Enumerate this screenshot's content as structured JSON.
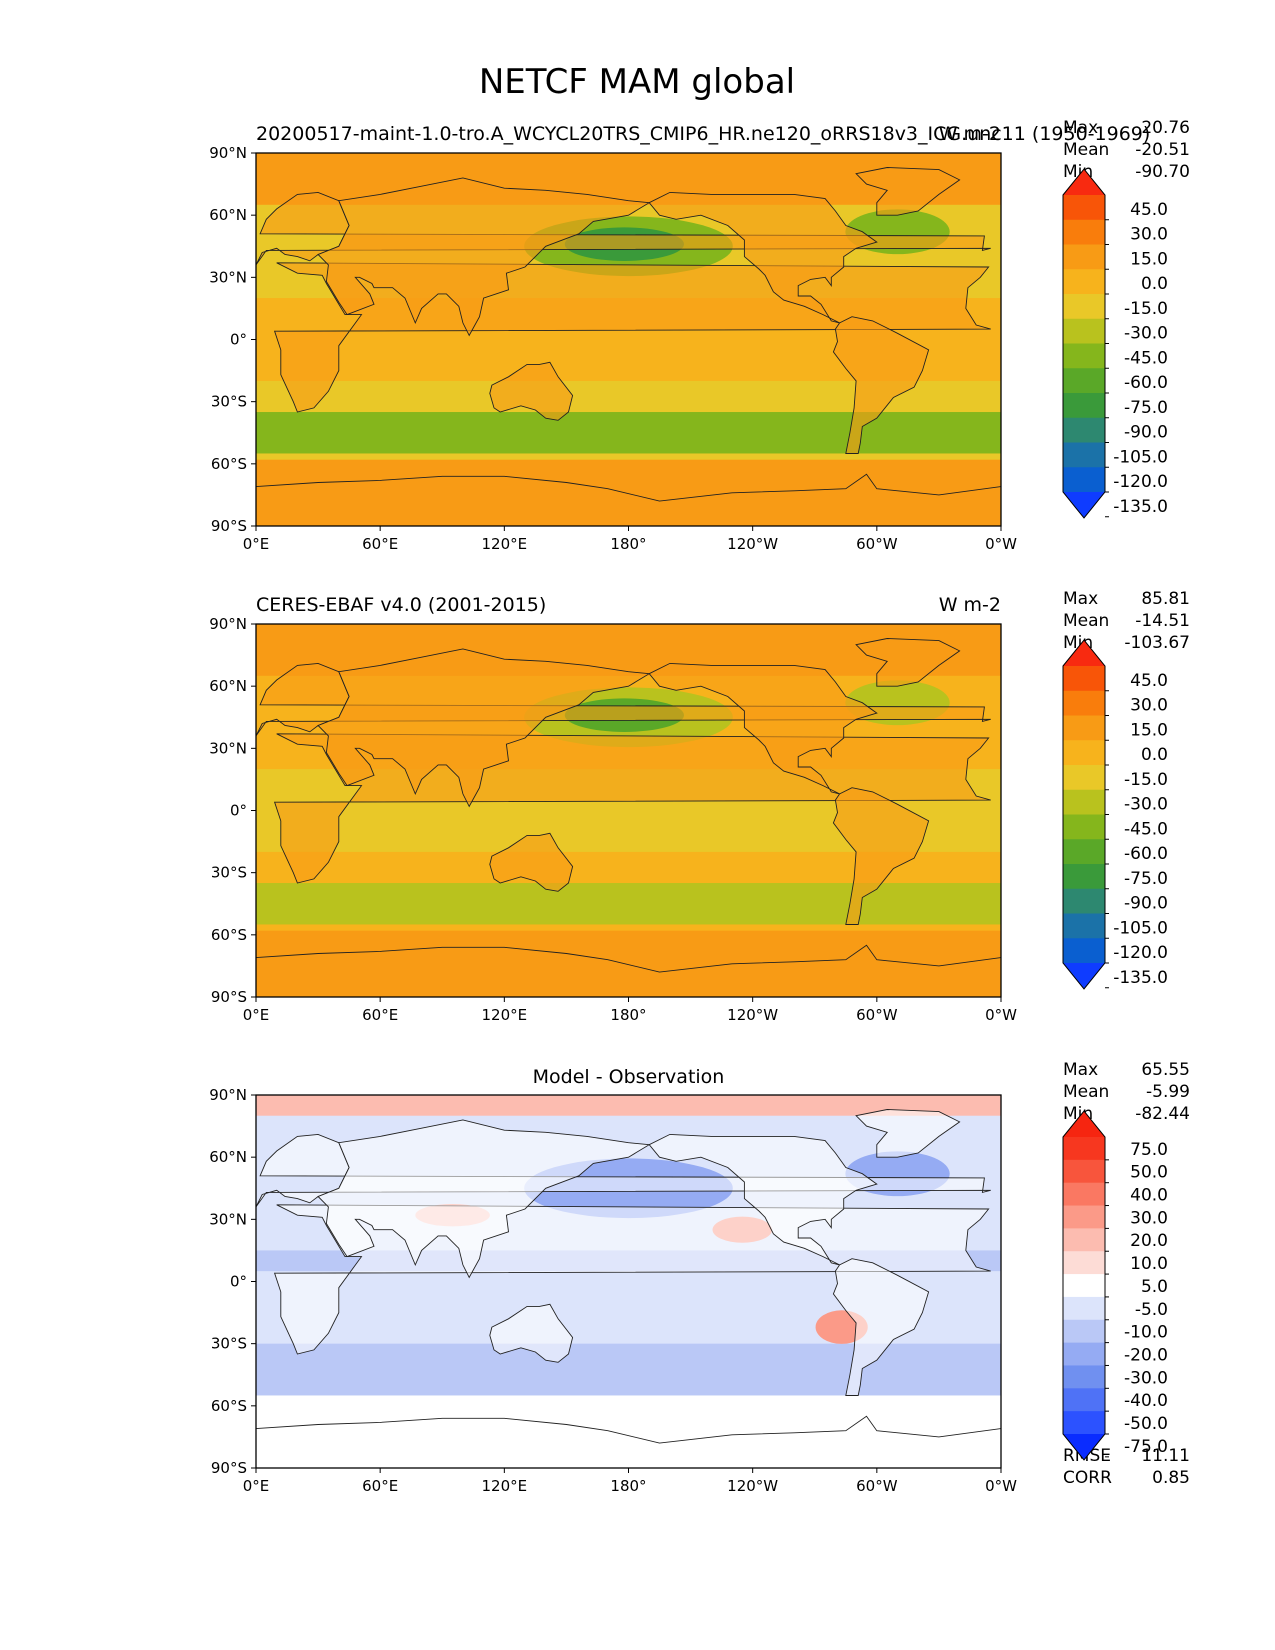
{
  "figure": {
    "title": "NETCF MAM global"
  },
  "chart_data": [
    {
      "type": "heatmap",
      "title_left": "20200517-maint-1.0-tro.A_WCYCL20TRS_CMIP6_HR.ne120_oRRS18v3_ICG.unc11 (1950-1969)",
      "title_right": "W m-2",
      "stats": [
        {
          "label": "Max",
          "value": "20.76"
        },
        {
          "label": "Mean",
          "value": "-20.51"
        },
        {
          "label": "Min",
          "value": "-90.70"
        }
      ],
      "x_ticks": [
        "0°E",
        "60°E",
        "120°E",
        "180°",
        "120°W",
        "60°W",
        "0°W"
      ],
      "y_ticks": [
        "90°N",
        "60°N",
        "30°N",
        "0°",
        "30°S",
        "60°S",
        "90°S"
      ],
      "xlim": [
        0,
        360
      ],
      "ylim": [
        -90,
        90
      ],
      "colorbar": {
        "levels": [
          -135.0,
          -120.0,
          -105.0,
          -90.0,
          -75.0,
          -60.0,
          -45.0,
          -30.0,
          -15.0,
          0.0,
          15.0,
          30.0,
          45.0
        ],
        "labels": [
          "-135.0",
          "-120.0",
          "-105.0",
          "-90.0",
          "-75.0",
          "-60.0",
          "-45.0",
          "-30.0",
          "-15.0",
          "0.0",
          "15.0",
          "30.0",
          "45.0"
        ],
        "colors": [
          "#0f3cff",
          "#0a5fd0",
          "#1b72a8",
          "#2d8870",
          "#3a9a3a",
          "#5aa828",
          "#85b61c",
          "#b9c21e",
          "#e9c828",
          "#f7b31c",
          "#f89b15",
          "#f97d0c",
          "#f85508",
          "#f82a10"
        ],
        "extend": "both"
      },
      "map_colors": {
        "ocean": "#e9c828",
        "mid": "#f7b31c",
        "land": "#f89b15",
        "green": "#85b61c",
        "deep": "#3a9a3a"
      }
    },
    {
      "type": "heatmap",
      "title_left": "CERES-EBAF v4.0 (2001-2015)",
      "title_right": "W m-2",
      "stats": [
        {
          "label": "Max",
          "value": "85.81"
        },
        {
          "label": "Mean",
          "value": "-14.51"
        },
        {
          "label": "Min",
          "value": "-103.67"
        }
      ],
      "x_ticks": [
        "0°E",
        "60°E",
        "120°E",
        "180°",
        "120°W",
        "60°W",
        "0°W"
      ],
      "y_ticks": [
        "90°N",
        "60°N",
        "30°N",
        "0°",
        "30°S",
        "60°S",
        "90°S"
      ],
      "xlim": [
        0,
        360
      ],
      "ylim": [
        -90,
        90
      ],
      "colorbar": {
        "levels": [
          -135.0,
          -120.0,
          -105.0,
          -90.0,
          -75.0,
          -60.0,
          -45.0,
          -30.0,
          -15.0,
          0.0,
          15.0,
          30.0,
          45.0
        ],
        "labels": [
          "-135.0",
          "-120.0",
          "-105.0",
          "-90.0",
          "-75.0",
          "-60.0",
          "-45.0",
          "-30.0",
          "-15.0",
          "0.0",
          "15.0",
          "30.0",
          "45.0"
        ],
        "colors": [
          "#0f3cff",
          "#0a5fd0",
          "#1b72a8",
          "#2d8870",
          "#3a9a3a",
          "#5aa828",
          "#85b61c",
          "#b9c21e",
          "#e9c828",
          "#f7b31c",
          "#f89b15",
          "#f97d0c",
          "#f85508",
          "#f82a10"
        ],
        "extend": "both"
      },
      "map_colors": {
        "ocean": "#f7b31c",
        "mid": "#e9c828",
        "land": "#f89b15",
        "green": "#b9c21e",
        "deep": "#5aa828"
      }
    },
    {
      "type": "heatmap",
      "title_center": "Model - Observation",
      "stats": [
        {
          "label": "Max",
          "value": "65.55"
        },
        {
          "label": "Mean",
          "value": "-5.99"
        },
        {
          "label": "Min",
          "value": "-82.44"
        }
      ],
      "extra_stats": [
        {
          "label": "RMSE",
          "value": "11.11"
        },
        {
          "label": "CORR",
          "value": "0.85"
        }
      ],
      "x_ticks": [
        "0°E",
        "60°E",
        "120°E",
        "180°",
        "120°W",
        "60°W",
        "0°W"
      ],
      "y_ticks": [
        "90°N",
        "60°N",
        "30°N",
        "0°",
        "30°S",
        "60°S",
        "90°S"
      ],
      "xlim": [
        0,
        360
      ],
      "ylim": [
        -90,
        90
      ],
      "colorbar": {
        "levels": [
          -75.0,
          -50.0,
          -40.0,
          -30.0,
          -20.0,
          -10.0,
          -5.0,
          5.0,
          10.0,
          20.0,
          30.0,
          40.0,
          50.0,
          75.0
        ],
        "labels": [
          "-75.0",
          "-50.0",
          "-40.0",
          "-30.0",
          "-20.0",
          "-10.0",
          "-5.0",
          "5.0",
          "10.0",
          "20.0",
          "30.0",
          "40.0",
          "50.0",
          "75.0"
        ],
        "colors": [
          "#0a2cff",
          "#2c52ff",
          "#4f72f6",
          "#7090f0",
          "#95abf3",
          "#bac8f6",
          "#dce4fb",
          "#ffffff",
          "#fddcd6",
          "#fcbcb0",
          "#fb9a88",
          "#fa7862",
          "#f8553c",
          "#f7371f",
          "#f62510"
        ],
        "extend": "both"
      },
      "map_colors": {
        "ocean": "#dce4fb",
        "mid": "#bac8f6",
        "land": "#ffffff",
        "green": "#95abf3",
        "deep": "#fb9a88",
        "polar": "#fcbcb0"
      }
    }
  ]
}
